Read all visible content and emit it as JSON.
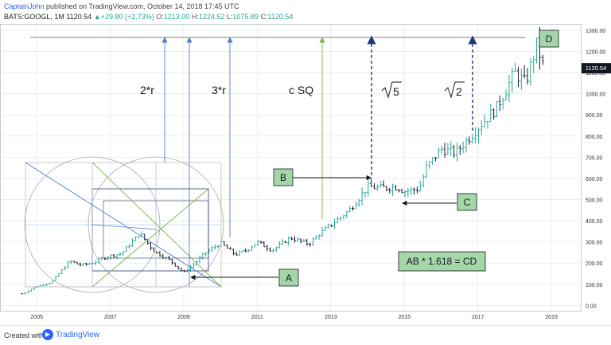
{
  "header": {
    "author": "CaptainJohn",
    "published_text": " published on TradingView.com, October 14, 2018 17:45 UTC",
    "symbol": "BATS:GOOGL, 1M",
    "last": "1120.54",
    "change_arrow": "▲",
    "change": "+29.80 (+2.73%)",
    "open_label": "O:",
    "open": "1213.00",
    "high_label": "H:",
    "high": "1224.52",
    "low_label": "L:",
    "low": "1075.89",
    "close_label": "C:",
    "close": "1120.54"
  },
  "price_badge": "1120.54",
  "footer": {
    "created_with": "Created with",
    "brand": "TradingView",
    "logo_icon": "tradingview-logo-icon"
  },
  "annotations": {
    "A": "A",
    "B": "B",
    "C": "C",
    "D": "D",
    "two_r": "2*r",
    "three_r": "3*r",
    "c_sq": "c SQ",
    "sqrt5": "5",
    "sqrt2": "2",
    "formula": "AB * 1.618 = CD"
  },
  "colors": {
    "up": "#26a69a",
    "down": "#131722",
    "label_fill": "#a5d6a7",
    "blue_line": "#4a7fd0",
    "green_line": "#7cb342",
    "dashed": "#1a3a7a",
    "grid": "#dfe3ea",
    "gray_line": "#9e9e9e"
  },
  "chart_data": {
    "type": "bar",
    "symbol": "BATS:GOOGL",
    "interval": "1M",
    "x_ticks": [
      "2005",
      "2007",
      "2009",
      "2011",
      "2013",
      "2015",
      "2017",
      "2019"
    ],
    "y_ticks": [
      "0.00",
      "100.00",
      "200.00",
      "300.00",
      "400.00",
      "500.00",
      "600.00",
      "700.00",
      "800.00",
      "900.00",
      "1000.00",
      "1100.00",
      "1200.00",
      "1300.00"
    ],
    "ylim": [
      -25,
      1330
    ],
    "xlim": [
      2004.0,
      2019.8
    ],
    "grid": true,
    "anchors": [
      [
        2004.6,
        55
      ],
      [
        2005.0,
        90
      ],
      [
        2005.4,
        110
      ],
      [
        2005.9,
        210
      ],
      [
        2006.2,
        190
      ],
      [
        2006.5,
        200
      ],
      [
        2006.9,
        230
      ],
      [
        2007.3,
        245
      ],
      [
        2007.8,
        340
      ],
      [
        2008.2,
        255
      ],
      [
        2008.6,
        215
      ],
      [
        2009.0,
        155
      ],
      [
        2009.3,
        200
      ],
      [
        2009.6,
        250
      ],
      [
        2010.0,
        295
      ],
      [
        2010.4,
        240
      ],
      [
        2010.7,
        260
      ],
      [
        2011.0,
        300
      ],
      [
        2011.4,
        260
      ],
      [
        2011.9,
        320
      ],
      [
        2012.4,
        290
      ],
      [
        2012.7,
        340
      ],
      [
        2013.0,
        380
      ],
      [
        2013.5,
        450
      ],
      [
        2014.0,
        560
      ],
      [
        2014.4,
        555
      ],
      [
        2014.8,
        560
      ],
      [
        2015.0,
        540
      ],
      [
        2015.4,
        550
      ],
      [
        2015.6,
        650
      ],
      [
        2016.0,
        740
      ],
      [
        2016.4,
        720
      ],
      [
        2016.8,
        800
      ],
      [
        2017.0,
        840
      ],
      [
        2017.5,
        930
      ],
      [
        2018.0,
        1100
      ],
      [
        2018.3,
        1050
      ],
      [
        2018.6,
        1230
      ],
      [
        2018.8,
        1120
      ]
    ],
    "last_price": 1120.54
  }
}
